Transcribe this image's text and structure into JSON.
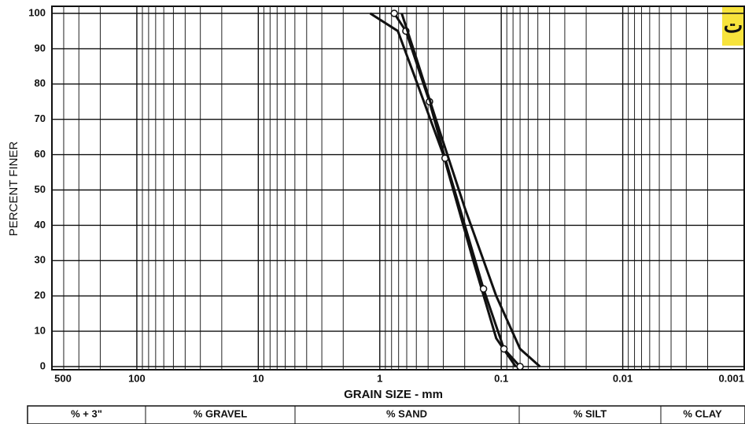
{
  "chart_data": {
    "type": "line",
    "title": "ت",
    "xlabel": "GRAIN SIZE - mm",
    "ylabel": "PERCENT FINER",
    "xscale": "log",
    "xlim": [
      500,
      0.001
    ],
    "ylim": [
      0,
      100
    ],
    "xticks": [
      500,
      100,
      10,
      1,
      0.1,
      0.01,
      0.001
    ],
    "x_minor_ticks": [
      400,
      300,
      200,
      90,
      80,
      70,
      60,
      50,
      40,
      30,
      20,
      9,
      8,
      7,
      6,
      5,
      4,
      3,
      2,
      0.9,
      0.8,
      0.7,
      0.6,
      0.5,
      0.4,
      0.3,
      0.2,
      0.09,
      0.08,
      0.07,
      0.06,
      0.05,
      0.04,
      0.03,
      0.02,
      0.009,
      0.008,
      0.007,
      0.006,
      0.005,
      0.004,
      0.003,
      0.002
    ],
    "yticks": [
      0,
      10,
      20,
      30,
      40,
      50,
      60,
      70,
      80,
      90,
      100
    ],
    "grid": true,
    "series": [
      {
        "color": "#111111",
        "x": [
          1.2,
          0.71,
          0.49,
          0.3,
          0.17,
          0.11,
          0.076
        ],
        "values": [
          100,
          95,
          80,
          60,
          30,
          8,
          0
        ],
        "markers": false
      },
      {
        "color": "#111111",
        "x": [
          0.76,
          0.61,
          0.39,
          0.29,
          0.14,
          0.095,
          0.07
        ],
        "values": [
          100,
          95,
          75,
          59,
          22,
          5,
          0
        ],
        "markers": true
      },
      {
        "color": "#111111",
        "x": [
          0.66,
          0.53,
          0.31,
          0.2,
          0.11,
          0.07,
          0.048
        ],
        "values": [
          100,
          90,
          65,
          45,
          20,
          5,
          0
        ],
        "markers": false
      }
    ]
  },
  "table": {
    "headers": [
      "% + 3\"",
      "% GRAVEL",
      "% SAND",
      "% SILT",
      "% CLAY"
    ]
  }
}
